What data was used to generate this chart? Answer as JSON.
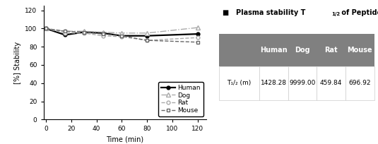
{
  "time": [
    0,
    15,
    30,
    45,
    60,
    80,
    120
  ],
  "human": [
    100,
    93,
    96,
    95,
    92,
    92,
    94
  ],
  "dog": [
    100,
    97,
    97,
    96,
    95,
    95,
    101
  ],
  "rat": [
    100,
    95,
    95,
    92,
    91,
    87,
    90
  ],
  "mouse": [
    100,
    97,
    96,
    94,
    92,
    87,
    85
  ],
  "xlabel": "Time (min)",
  "ylabel": "[%] Stability",
  "ylim": [
    0,
    125
  ],
  "yticks": [
    0,
    20,
    40,
    60,
    80,
    100,
    120
  ],
  "xticks": [
    0,
    20,
    40,
    60,
    80,
    100,
    120
  ],
  "xlim": [
    -2,
    127
  ],
  "table_headers": [
    "Human",
    "Dog",
    "Rat",
    "Mouse"
  ],
  "table_row_label": "T₁/₂ (m)",
  "table_values": [
    "1428.28",
    "9999.00",
    "459.84",
    "696.92"
  ],
  "header_bg": "#808080",
  "header_fg": "#ffffff",
  "bg_color": "#ffffff",
  "line_color_human": "#000000",
  "line_color_dog": "#aaaaaa",
  "line_color_rat": "#aaaaaa",
  "line_color_mouse": "#666666"
}
